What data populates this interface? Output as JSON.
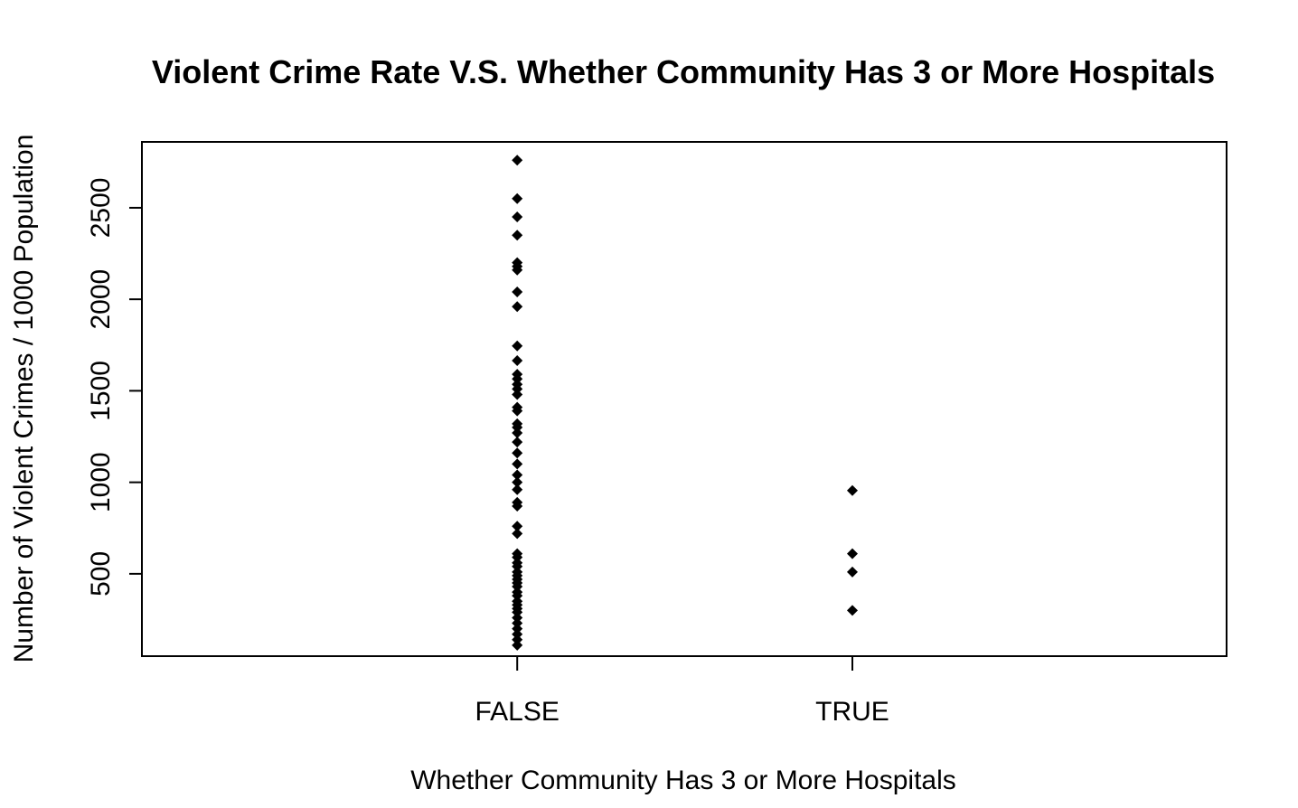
{
  "chart_data": {
    "type": "scatter",
    "title": "Violent Crime Rate V.S.  Whether Community Has 3 or More Hospitals",
    "xlabel": "Whether Community Has 3 or More Hospitals",
    "ylabel": "Number of Violent Crimes / 1000 Population",
    "categories": [
      "FALSE",
      "TRUE"
    ],
    "y_ticks": [
      500,
      1000,
      1500,
      2000,
      2500
    ],
    "ylim": [
      50,
      2860
    ],
    "grid": false,
    "legend": "none",
    "marker": "filled-diamond",
    "marker_color": "#000000",
    "series": [
      {
        "category": "FALSE",
        "values": [
          2760,
          2550,
          2450,
          2350,
          2200,
          2180,
          2160,
          2040,
          1960,
          1745,
          1665,
          1590,
          1565,
          1535,
          1510,
          1480,
          1410,
          1390,
          1320,
          1300,
          1270,
          1220,
          1160,
          1100,
          1040,
          1000,
          960,
          890,
          870,
          760,
          720,
          610,
          590,
          560,
          540,
          510,
          490,
          470,
          450,
          430,
          400,
          380,
          350,
          330,
          310,
          290,
          260,
          230,
          200,
          170,
          140,
          110
        ]
      },
      {
        "category": "TRUE",
        "values": [
          955,
          610,
          510,
          300
        ]
      }
    ]
  }
}
